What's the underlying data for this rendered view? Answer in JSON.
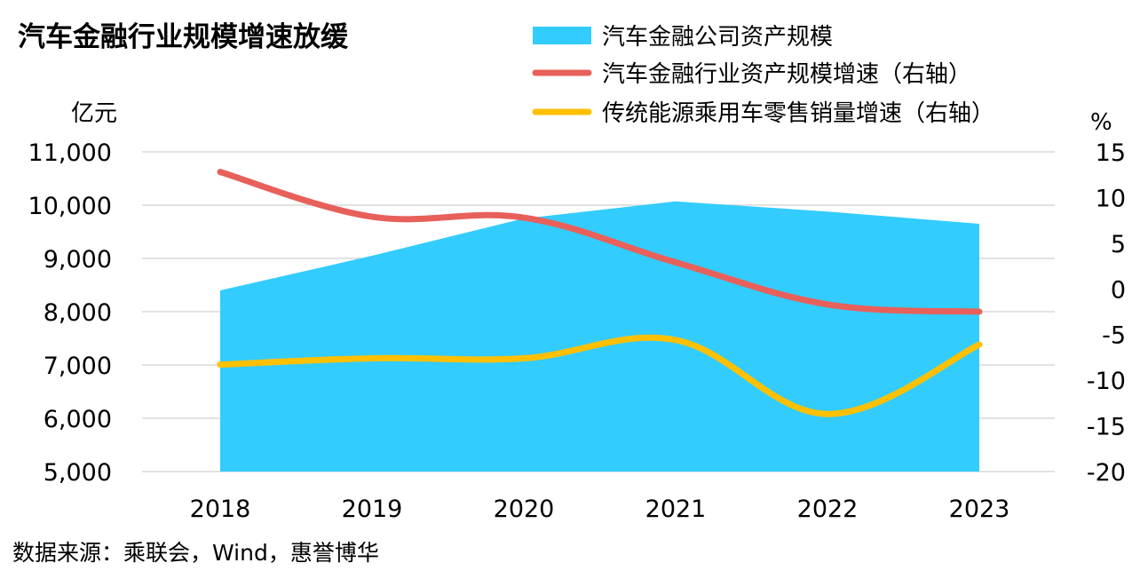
{
  "chart_data": {
    "type": "area+line",
    "title": "汽车金融行业规模增速放缓",
    "source": "数据来源：乘联会，Wind，惠誉博华",
    "left_unit": "亿元",
    "right_unit": "%",
    "categories": [
      "2018",
      "2019",
      "2020",
      "2021",
      "2022",
      "2023"
    ],
    "left_axis": {
      "range": [
        5000,
        11000
      ],
      "ticks": [
        5000,
        6000,
        7000,
        8000,
        9000,
        10000,
        11000
      ],
      "tick_labels": [
        "5,000",
        "6,000",
        "7,000",
        "8,000",
        "9,000",
        "10,000",
        "11,000"
      ]
    },
    "right_axis": {
      "range": [
        -20,
        15
      ],
      "ticks": [
        -20,
        -15,
        -10,
        -5,
        0,
        5,
        10,
        15
      ],
      "tick_labels": [
        "-20",
        "-15",
        "-10",
        "-5",
        "0",
        "5",
        "10",
        "15"
      ]
    },
    "grid": "horizontal",
    "legend_position": "top-right",
    "series": [
      {
        "name": "汽车金融公司资产规模",
        "type": "area",
        "axis": "left",
        "color": "#33CCFF",
        "values": [
          8400,
          9050,
          9750,
          10070,
          9880,
          9650
        ]
      },
      {
        "name": "汽车金融行业资产规模增速（右轴）",
        "type": "line",
        "axis": "right",
        "color": "#E8605A",
        "values": [
          12.8,
          7.9,
          7.8,
          2.9,
          -1.7,
          -2.5
        ]
      },
      {
        "name": "传统能源乘用车零售销量增速（右轴）",
        "type": "line",
        "axis": "right",
        "color": "#FFC000",
        "values": [
          -8.3,
          -7.6,
          -7.6,
          -5.6,
          -13.7,
          -6.1
        ]
      }
    ]
  }
}
